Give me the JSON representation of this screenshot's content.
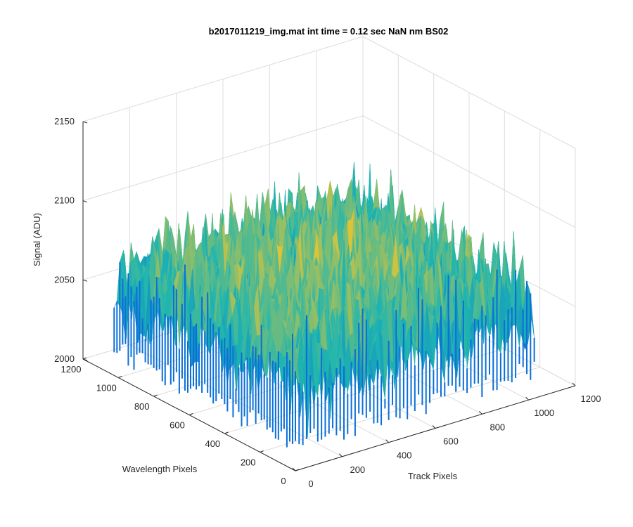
{
  "chart_data": {
    "type": "surface3d",
    "title": "b2017011219_img.mat int time = 0.12 sec  NaN nm BS02",
    "xlabel": "Track Pixels",
    "ylabel": "Wavelength Pixels",
    "zlabel": "Signal (ADU)",
    "xlim": [
      0,
      1200
    ],
    "ylim": [
      0,
      1200
    ],
    "zlim": [
      2000,
      2150
    ],
    "x_ticks": [
      "0",
      "200",
      "400",
      "600",
      "800",
      "1000",
      "1200"
    ],
    "y_ticks": [
      "0",
      "200",
      "400",
      "600",
      "800",
      "1000",
      "1200"
    ],
    "z_ticks": [
      "2000",
      "2050",
      "2100",
      "2150"
    ],
    "x_range": [
      0,
      1024
    ],
    "y_range": [
      0,
      1024
    ],
    "z_surface_range": [
      2010,
      2145
    ],
    "z_mean_approx": 2065,
    "grid": true,
    "colormap": "parula",
    "colors": {
      "low": "#0a6fd9",
      "mid": "#1fb6b0",
      "high": "#d9c43a",
      "axis": "#262626",
      "grid": "#dcdcdc"
    }
  }
}
